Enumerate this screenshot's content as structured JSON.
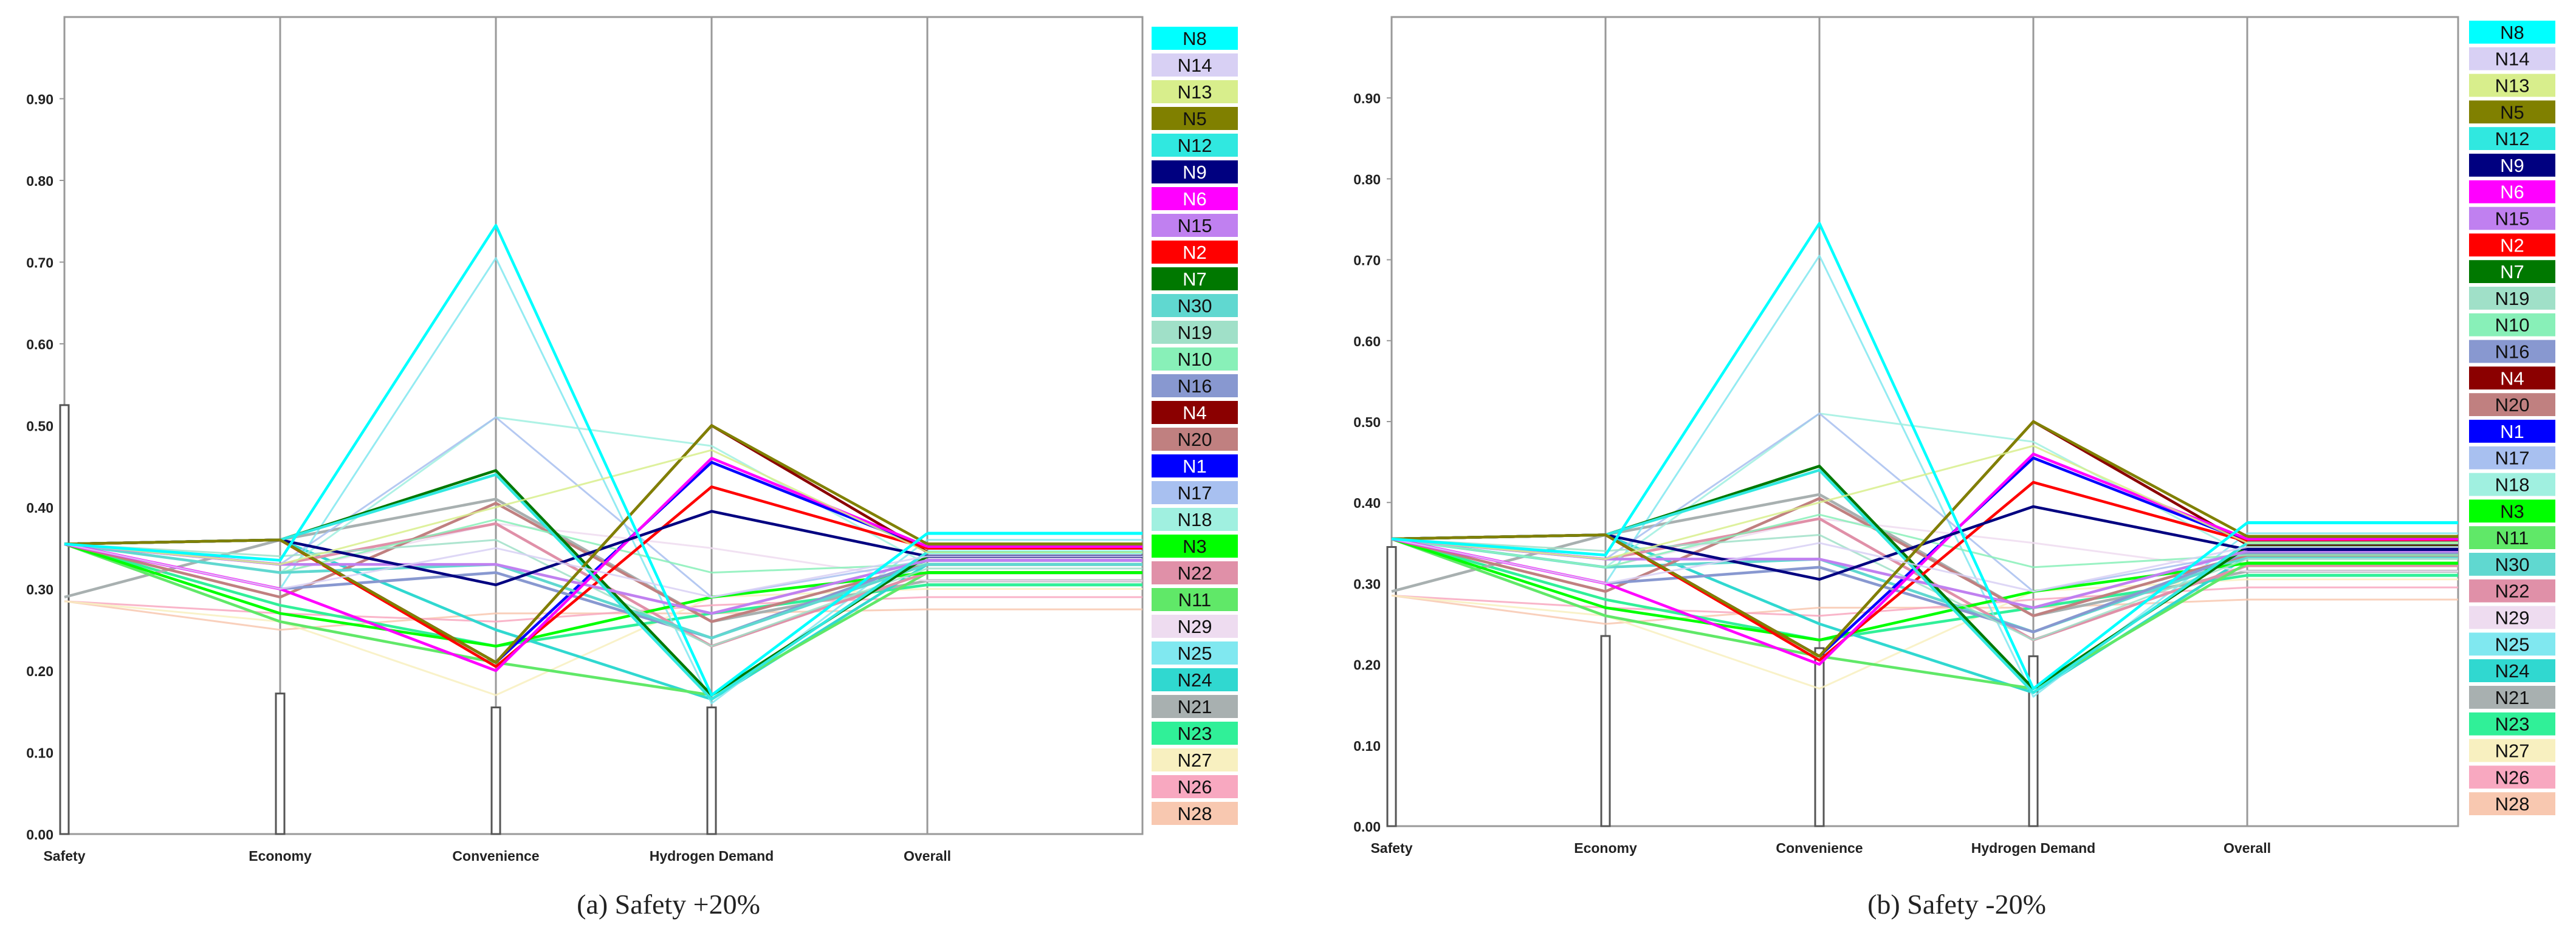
{
  "chart_data": [
    {
      "type": "parallel-coordinates",
      "caption": "(a) Safety +20%",
      "axes": [
        "Safety",
        "Economy",
        "Convenience",
        "Hydrogen Demand",
        "Overall"
      ],
      "ylim": [
        0,
        1
      ],
      "yticks": [
        "0.00",
        "0.10",
        "0.20",
        "0.30",
        "0.40",
        "0.50",
        "0.60",
        "0.70",
        "0.80",
        "0.90"
      ],
      "axis_histograms": [
        0.525,
        0.172,
        0.155,
        0.155,
        0
      ],
      "series": [
        {
          "name": "N8",
          "color": "#00FFFF",
          "values": [
            0.355,
            0.335,
            0.745,
            0.17,
            0.368
          ]
        },
        {
          "name": "N14",
          "color": "#D8D0F4",
          "values": [
            0.355,
            0.3,
            0.35,
            0.29,
            0.34
          ]
        },
        {
          "name": "N13",
          "color": "#D8EE8C",
          "values": [
            0.355,
            0.33,
            0.4,
            0.47,
            0.345
          ]
        },
        {
          "name": "N5",
          "color": "#808000",
          "values": [
            0.355,
            0.36,
            0.21,
            0.5,
            0.355
          ]
        },
        {
          "name": "N12",
          "color": "#30E8E0",
          "values": [
            0.355,
            0.36,
            0.44,
            0.165,
            0.345
          ]
        },
        {
          "name": "N9",
          "color": "#000080",
          "values": [
            0.355,
            0.36,
            0.305,
            0.395,
            0.34
          ]
        },
        {
          "name": "N6",
          "color": "#FF00FF",
          "values": [
            0.355,
            0.3,
            0.2,
            0.46,
            0.352
          ]
        },
        {
          "name": "N15",
          "color": "#C080F0",
          "values": [
            0.355,
            0.33,
            0.33,
            0.27,
            0.335
          ]
        },
        {
          "name": "N2",
          "color": "#FF0000",
          "values": [
            0.355,
            0.36,
            0.205,
            0.425,
            0.35
          ]
        },
        {
          "name": "N7",
          "color": "#007800",
          "values": [
            0.355,
            0.36,
            0.445,
            0.17,
            0.34
          ]
        },
        {
          "name": "N30",
          "color": "#60D8D0",
          "values": [
            0.355,
            0.32,
            0.33,
            0.24,
            0.33
          ]
        },
        {
          "name": "N19",
          "color": "#A0E0C8",
          "values": [
            0.355,
            0.34,
            0.36,
            0.23,
            0.325
          ]
        },
        {
          "name": "N10",
          "color": "#88F0B8",
          "values": [
            0.355,
            0.32,
            0.385,
            0.32,
            0.33
          ]
        },
        {
          "name": "N16",
          "color": "#8898D0",
          "values": [
            0.355,
            0.3,
            0.32,
            0.24,
            0.335
          ]
        },
        {
          "name": "N4",
          "color": "#8B0000",
          "values": [
            0.355,
            0.36,
            0.21,
            0.5,
            0.345
          ]
        },
        {
          "name": "N20",
          "color": "#C08080",
          "values": [
            0.355,
            0.29,
            0.405,
            0.26,
            0.33
          ]
        },
        {
          "name": "N1",
          "color": "#0000FF",
          "values": [
            0.355,
            0.36,
            0.21,
            0.455,
            0.35
          ]
        },
        {
          "name": "N17",
          "color": "#A8C0F0",
          "values": [
            0.355,
            0.33,
            0.51,
            0.29,
            0.335
          ]
        },
        {
          "name": "N18",
          "color": "#A0F0E0",
          "values": [
            0.355,
            0.32,
            0.51,
            0.475,
            0.33
          ]
        },
        {
          "name": "N3",
          "color": "#00FF00",
          "values": [
            0.355,
            0.27,
            0.23,
            0.29,
            0.32
          ]
        },
        {
          "name": "N22",
          "color": "#E090A8",
          "values": [
            0.355,
            0.33,
            0.38,
            0.23,
            0.32
          ]
        },
        {
          "name": "N11",
          "color": "#60E868",
          "values": [
            0.355,
            0.26,
            0.21,
            0.17,
            0.32
          ]
        },
        {
          "name": "N29",
          "color": "#EEDCF0",
          "values": [
            0.355,
            0.32,
            0.38,
            0.35,
            0.31
          ]
        },
        {
          "name": "N25",
          "color": "#80E8F0",
          "values": [
            0.355,
            0.3,
            0.705,
            0.16,
            0.36
          ]
        },
        {
          "name": "N24",
          "color": "#30D8D0",
          "values": [
            0.355,
            0.36,
            0.25,
            0.165,
            0.33
          ]
        },
        {
          "name": "N21",
          "color": "#A8B0B0",
          "values": [
            0.29,
            0.36,
            0.41,
            0.26,
            0.31
          ]
        },
        {
          "name": "N23",
          "color": "#30F098",
          "values": [
            0.355,
            0.28,
            0.23,
            0.27,
            0.305
          ]
        },
        {
          "name": "N27",
          "color": "#F8F0C0",
          "values": [
            0.285,
            0.26,
            0.17,
            0.29,
            0.3
          ]
        },
        {
          "name": "N26",
          "color": "#F8A8C0",
          "values": [
            0.285,
            0.27,
            0.26,
            0.28,
            0.29
          ]
        },
        {
          "name": "N28",
          "color": "#F8C8B0",
          "values": [
            0.285,
            0.25,
            0.27,
            0.27,
            0.275
          ]
        }
      ]
    },
    {
      "type": "parallel-coordinates",
      "caption": "(b) Safety -20%",
      "axes": [
        "Safety",
        "Economy",
        "Convenience",
        "Hydrogen Demand",
        "Overall"
      ],
      "ylim": [
        0,
        1
      ],
      "yticks": [
        "0.00",
        "0.10",
        "0.20",
        "0.30",
        "0.40",
        "0.50",
        "0.60",
        "0.70",
        "0.80",
        "0.90"
      ],
      "axis_histograms": [
        0.345,
        0.235,
        0.22,
        0.21,
        0
      ],
      "series": [
        {
          "name": "N8",
          "color": "#00FFFF",
          "values": [
            0.355,
            0.335,
            0.745,
            0.17,
            0.375
          ]
        },
        {
          "name": "N14",
          "color": "#D8D0F4",
          "values": [
            0.355,
            0.3,
            0.35,
            0.29,
            0.345
          ]
        },
        {
          "name": "N13",
          "color": "#D8EE8C",
          "values": [
            0.355,
            0.33,
            0.4,
            0.47,
            0.35
          ]
        },
        {
          "name": "N5",
          "color": "#808000",
          "values": [
            0.355,
            0.36,
            0.21,
            0.5,
            0.358
          ]
        },
        {
          "name": "N12",
          "color": "#30E8E0",
          "values": [
            0.355,
            0.36,
            0.44,
            0.165,
            0.35
          ]
        },
        {
          "name": "N9",
          "color": "#000080",
          "values": [
            0.355,
            0.36,
            0.305,
            0.395,
            0.342
          ]
        },
        {
          "name": "N6",
          "color": "#FF00FF",
          "values": [
            0.355,
            0.3,
            0.2,
            0.46,
            0.355
          ]
        },
        {
          "name": "N15",
          "color": "#C080F0",
          "values": [
            0.355,
            0.33,
            0.33,
            0.27,
            0.34
          ]
        },
        {
          "name": "N2",
          "color": "#FF0000",
          "values": [
            0.355,
            0.36,
            0.205,
            0.425,
            0.352
          ]
        },
        {
          "name": "N7",
          "color": "#007800",
          "values": [
            0.355,
            0.36,
            0.445,
            0.17,
            0.345
          ]
        },
        {
          "name": "N19",
          "color": "#A0E0C8",
          "values": [
            0.355,
            0.34,
            0.36,
            0.23,
            0.33
          ]
        },
        {
          "name": "N10",
          "color": "#88F0B8",
          "values": [
            0.355,
            0.32,
            0.385,
            0.32,
            0.335
          ]
        },
        {
          "name": "N16",
          "color": "#8898D0",
          "values": [
            0.355,
            0.3,
            0.32,
            0.24,
            0.338
          ]
        },
        {
          "name": "N4",
          "color": "#8B0000",
          "values": [
            0.355,
            0.36,
            0.21,
            0.5,
            0.348
          ]
        },
        {
          "name": "N20",
          "color": "#C08080",
          "values": [
            0.355,
            0.29,
            0.405,
            0.26,
            0.335
          ]
        },
        {
          "name": "N1",
          "color": "#0000FF",
          "values": [
            0.355,
            0.36,
            0.21,
            0.455,
            0.352
          ]
        },
        {
          "name": "N17",
          "color": "#A8C0F0",
          "values": [
            0.355,
            0.33,
            0.51,
            0.29,
            0.338
          ]
        },
        {
          "name": "N18",
          "color": "#A0F0E0",
          "values": [
            0.355,
            0.32,
            0.51,
            0.475,
            0.335
          ]
        },
        {
          "name": "N3",
          "color": "#00FF00",
          "values": [
            0.355,
            0.27,
            0.23,
            0.29,
            0.325
          ]
        },
        {
          "name": "N11",
          "color": "#60E868",
          "values": [
            0.355,
            0.26,
            0.21,
            0.17,
            0.325
          ]
        },
        {
          "name": "N30",
          "color": "#60D8D0",
          "values": [
            0.355,
            0.32,
            0.33,
            0.24,
            0.333
          ]
        },
        {
          "name": "N22",
          "color": "#E090A8",
          "values": [
            0.355,
            0.33,
            0.38,
            0.23,
            0.322
          ]
        },
        {
          "name": "N29",
          "color": "#EEDCF0",
          "values": [
            0.355,
            0.32,
            0.38,
            0.35,
            0.315
          ]
        },
        {
          "name": "N25",
          "color": "#80E8F0",
          "values": [
            0.355,
            0.3,
            0.705,
            0.16,
            0.362
          ]
        },
        {
          "name": "N24",
          "color": "#30D8D0",
          "values": [
            0.355,
            0.36,
            0.25,
            0.165,
            0.333
          ]
        },
        {
          "name": "N21",
          "color": "#A8B0B0",
          "values": [
            0.29,
            0.36,
            0.41,
            0.26,
            0.315
          ]
        },
        {
          "name": "N23",
          "color": "#30F098",
          "values": [
            0.355,
            0.28,
            0.23,
            0.27,
            0.31
          ]
        },
        {
          "name": "N27",
          "color": "#F8F0C0",
          "values": [
            0.285,
            0.26,
            0.17,
            0.29,
            0.305
          ]
        },
        {
          "name": "N26",
          "color": "#F8A8C0",
          "values": [
            0.285,
            0.27,
            0.26,
            0.28,
            0.295
          ]
        },
        {
          "name": "N28",
          "color": "#F8C8B0",
          "values": [
            0.285,
            0.25,
            0.27,
            0.27,
            0.28
          ]
        }
      ]
    }
  ]
}
